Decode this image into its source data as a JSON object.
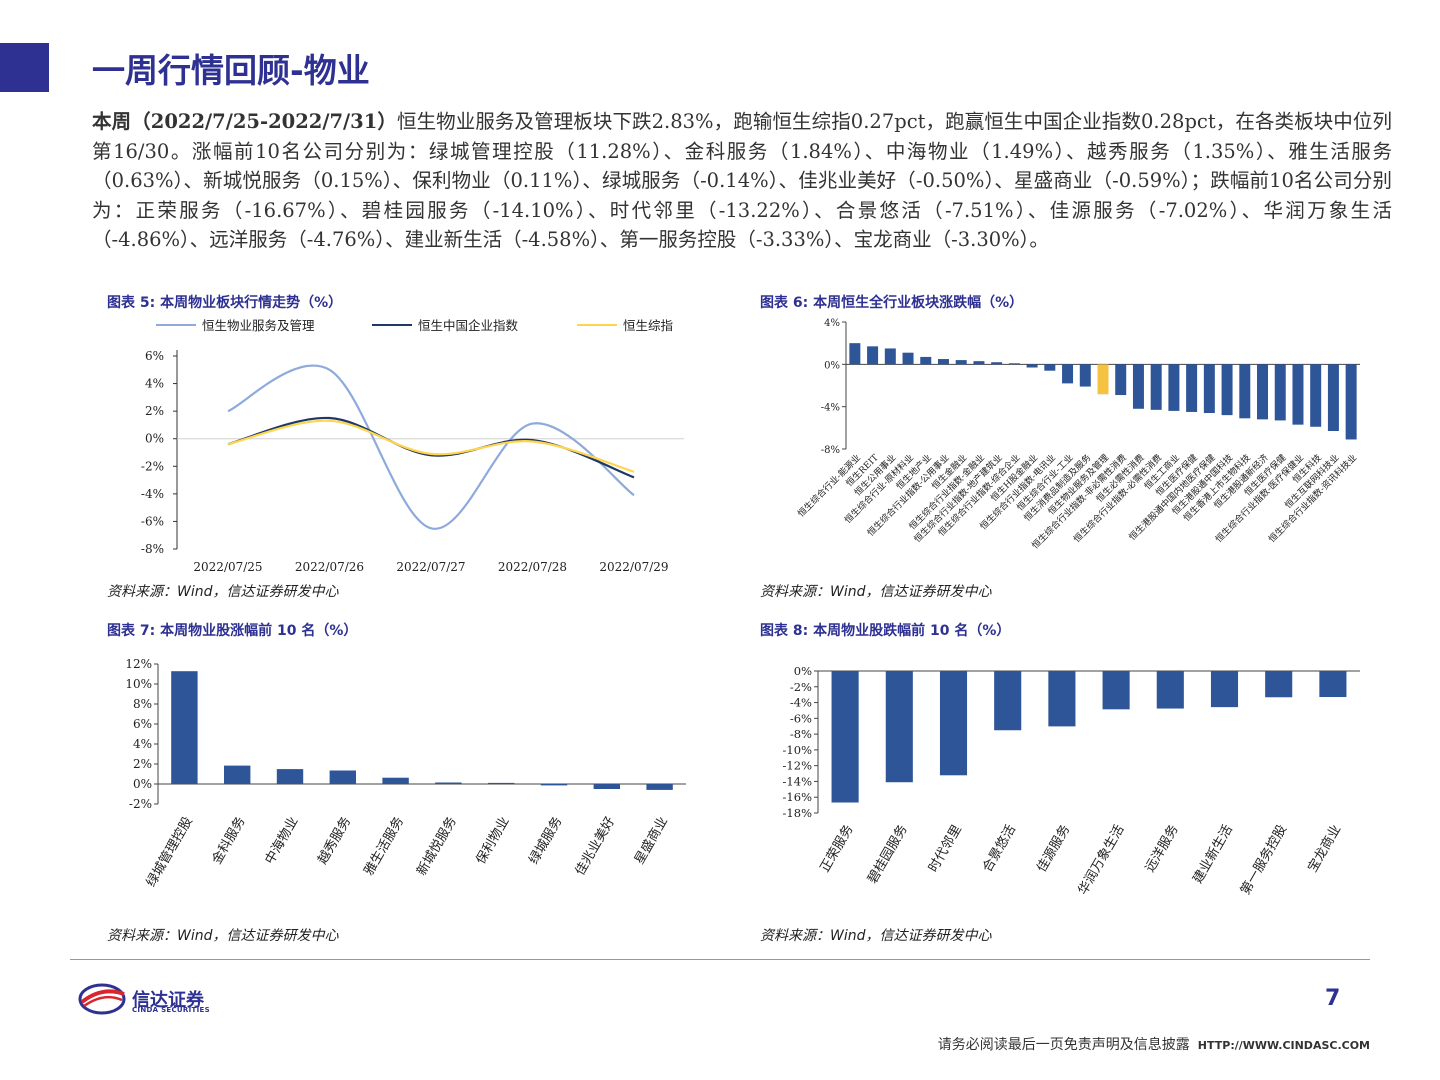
{
  "title": "一周行情回顾-物业",
  "intro": {
    "lead": "本周（2022/7/25-2022/7/31）",
    "body": "恒生物业服务及管理板块下跌2.83%，跑输恒生综指0.27pct，跑赢恒生中国企业指数0.28pct，在各类板块中位列第16/30。涨幅前10名公司分别为：绿城管理控股（11.28%）、金科服务（1.84%）、中海物业（1.49%）、越秀服务（1.35%）、雅生活服务（0.63%）、新城悦服务（0.15%）、保利物业（0.11%）、绿城服务（-0.14%）、佳兆业美好（-0.50%）、星盛商业（-0.59%）；跌幅前10名公司分别为：正荣服务（-16.67%）、碧桂园服务（-14.10%）、时代邻里（-13.22%）、合景悠活（-7.51%）、佳源服务（-7.02%）、华润万象生活（-4.86%）、远洋服务（-4.76%）、建业新生活（-4.58%）、第一服务控股（-3.33%）、宝龙商业（-3.30%）。"
  },
  "figures": {
    "fig5_title": "图表 5:  本周物业板块行情走势（%）",
    "fig6_title": "图表 6:  本周恒生全行业板块涨跌幅（%）",
    "fig7_title": "图表 7:  本周物业股涨幅前 10 名（%）",
    "fig8_title": "图表 8:  本周物业股跌幅前 10 名（%）",
    "source": "资料来源：Wind，信达证券研发中心"
  },
  "colors": {
    "brand": "#2E3192",
    "bar": "#2E5597",
    "highlight": "#F5C242",
    "line1": "#8EA9DB",
    "line2": "#1F3864",
    "line3": "#FFD54F"
  },
  "chart_data": [
    {
      "id": "fig5",
      "type": "line",
      "x": [
        "2022/07/25",
        "2022/07/26",
        "2022/07/27",
        "2022/07/28",
        "2022/07/29"
      ],
      "ylim": [
        -8,
        6
      ],
      "yticks": [
        "6%",
        "4%",
        "2%",
        "0%",
        "-2%",
        "-4%",
        "-6%",
        "-8%"
      ],
      "series": [
        {
          "name": "恒生物业服务及管理",
          "values": [
            2.0,
            5.0,
            -6.5,
            1.1,
            -4.1
          ]
        },
        {
          "name": "恒生中国企业指数",
          "values": [
            -0.4,
            1.5,
            -1.2,
            -0.1,
            -2.8
          ]
        },
        {
          "name": "恒生综指",
          "values": [
            -0.4,
            1.3,
            -1.1,
            -0.2,
            -2.4
          ]
        }
      ]
    },
    {
      "id": "fig6",
      "type": "bar",
      "ylim": [
        -8,
        4
      ],
      "yticks": [
        "4%",
        "0%",
        "-4%",
        "-8%"
      ],
      "categories": [
        "恒生综合行业-能源业",
        "恒生REIT",
        "恒生公用事业",
        "恒生综合行业-原材料业",
        "恒生地产业",
        "恒生综合行业指数-公用事业",
        "恒生金融业",
        "恒生综合行业指数-金融业",
        "恒生综合行业指数-地产建筑业",
        "恒生综合行业指数-综合企业",
        "恒生H股金融业",
        "恒生综合行业指数-电讯业",
        "恒生综合行业-工业",
        "恒生消费品制造及服务",
        "恒生物业服务及管理",
        "恒生综合行业指数-非必需性消费",
        "恒生必需性消费",
        "恒生综合行业指数-必需性消费",
        "恒生工商业",
        "恒生医疗保健",
        "恒生港股通中国内地医疗保健",
        "恒生港股通中国科技",
        "恒生香港上市生物科技",
        "恒生港股通新经济",
        "恒生医疗保健",
        "恒生综合行业指数-医疗保健业",
        "恒生科技",
        "恒生互联网科技业",
        "恒生综合行业指数-资讯科技业"
      ],
      "values": [
        2.0,
        1.7,
        1.5,
        1.1,
        0.7,
        0.5,
        0.4,
        0.3,
        0.2,
        0.1,
        -0.3,
        -0.6,
        -1.8,
        -2.1,
        -2.83,
        -2.9,
        -4.2,
        -4.3,
        -4.4,
        -4.5,
        -4.6,
        -4.8,
        -5.1,
        -5.2,
        -5.3,
        -5.7,
        -5.9,
        -6.3,
        -7.1
      ],
      "highlight_index": 14
    },
    {
      "id": "fig7",
      "type": "bar",
      "ylim": [
        -2,
        12
      ],
      "yticks": [
        "12%",
        "10%",
        "8%",
        "6%",
        "4%",
        "2%",
        "0%",
        "-2%"
      ],
      "categories": [
        "绿城管理控股",
        "金科服务",
        "中海物业",
        "越秀服务",
        "雅生活服务",
        "新城悦服务",
        "保利物业",
        "绿城服务",
        "佳兆业美好",
        "星盛商业"
      ],
      "values": [
        11.28,
        1.84,
        1.49,
        1.35,
        0.63,
        0.15,
        0.11,
        -0.14,
        -0.5,
        -0.59
      ]
    },
    {
      "id": "fig8",
      "type": "bar",
      "ylim": [
        -18,
        0
      ],
      "yticks": [
        "0%",
        "-2%",
        "-4%",
        "-6%",
        "-8%",
        "-10%",
        "-12%",
        "-14%",
        "-16%",
        "-18%"
      ],
      "categories": [
        "正荣服务",
        "碧桂园服务",
        "时代邻里",
        "合景悠活",
        "佳源服务",
        "华润万象生活",
        "远洋服务",
        "建业新生活",
        "第一服务控股",
        "宝龙商业"
      ],
      "values": [
        -16.67,
        -14.1,
        -13.22,
        -7.51,
        -7.02,
        -4.86,
        -4.76,
        -4.58,
        -3.33,
        -3.3
      ]
    }
  ],
  "footer": {
    "logo_cn": "信达证券",
    "logo_en": "CINDA SECURITIES",
    "page": "7",
    "disclaimer": "请务必阅读最后一页免责声明及信息披露",
    "url": "HTTP://WWW.CINDASC.COM"
  }
}
